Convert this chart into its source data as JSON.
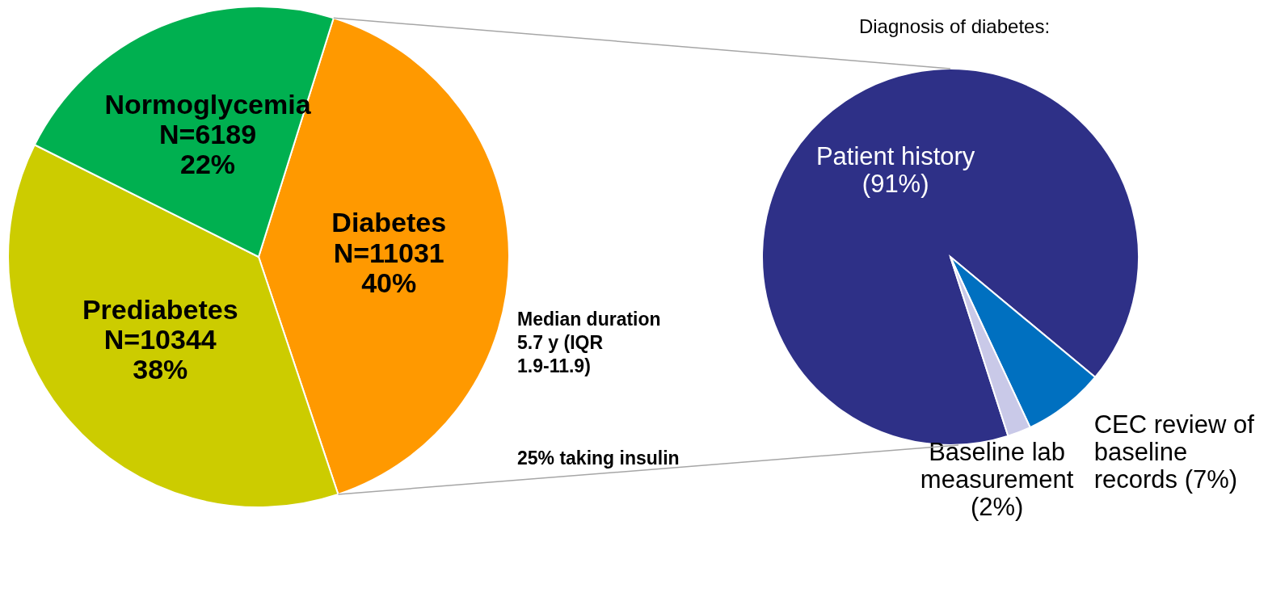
{
  "chart_data": [
    {
      "type": "pie",
      "categories": [
        "Diabetes",
        "Prediabetes",
        "Normoglycemia"
      ],
      "values": [
        11031,
        10344,
        6189
      ],
      "value_labels": [
        "N=11031\n40%",
        "N=10344\n38%",
        "N=6189\n22%"
      ],
      "colors": [
        "#ff9900",
        "#cccc00",
        "#00b050"
      ],
      "annotations": [
        "Median duration 5.7 y (IQR 1.9-11.9)",
        "25% taking insulin"
      ]
    },
    {
      "type": "pie",
      "title": "Diagnosis of diabetes:",
      "categories": [
        "Patient history",
        "CEC review of baseline records",
        "Baseline lab measurement"
      ],
      "values": [
        91,
        7,
        2
      ],
      "value_labels": [
        "(91%)",
        "(7%)",
        "(2%)"
      ],
      "colors": [
        "#2e3087",
        "#0070c0",
        "#c9c9e8"
      ]
    }
  ]
}
